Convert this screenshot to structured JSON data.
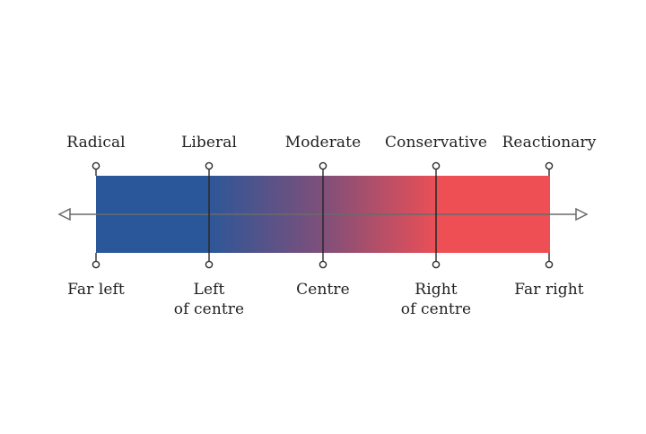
{
  "spectrum": {
    "top_labels": [
      "Radical",
      "Liberal",
      "Moderate",
      "Conservative",
      "Reactionary"
    ],
    "bottom_labels": [
      [
        "Far left"
      ],
      [
        "Left",
        "of centre"
      ],
      [
        "Centre"
      ],
      [
        "Right",
        "of centre"
      ],
      [
        "Far right"
      ]
    ],
    "colors": {
      "left": "#2a5799",
      "mid": "#7f4f7a",
      "right": "#ee4f55",
      "line": "#2b2b2b",
      "arrow": "#6a6a6a"
    }
  }
}
